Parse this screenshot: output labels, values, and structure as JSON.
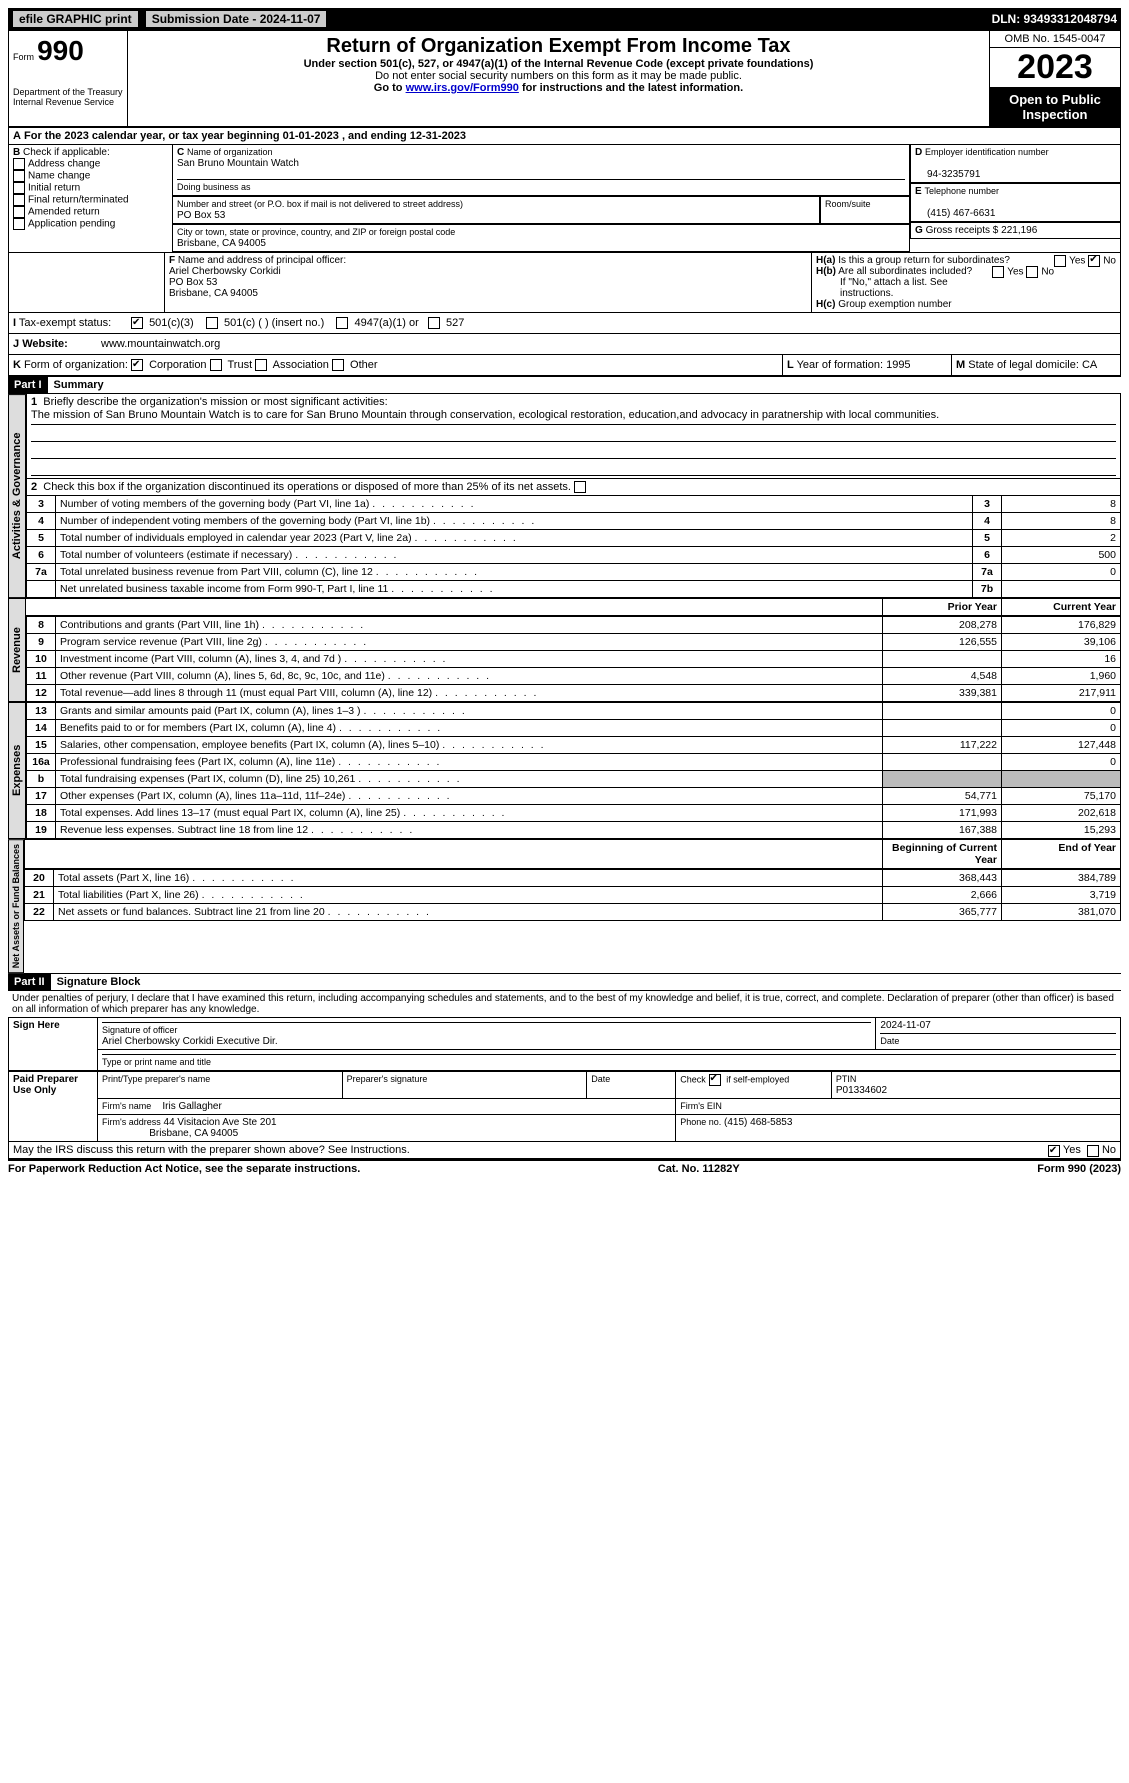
{
  "topbar": {
    "efile": "efile GRAPHIC print",
    "submission": "Submission Date - 2024-11-07",
    "dln": "DLN: 93493312048794"
  },
  "header": {
    "form_label": "Form",
    "form_no": "990",
    "dept": "Department of the Treasury",
    "irs": "Internal Revenue Service",
    "title": "Return of Organization Exempt From Income Tax",
    "subtitle": "Under section 501(c), 527, or 4947(a)(1) of the Internal Revenue Code (except private foundations)",
    "note1": "Do not enter social security numbers on this form as it may be made public.",
    "note2": "Go to ",
    "note2_link": "www.irs.gov/Form990",
    "note2_tail": " for instructions and the latest information.",
    "omb": "OMB No. 1545-0047",
    "year": "2023",
    "open": "Open to Public Inspection"
  },
  "A": {
    "text": "For the 2023 calendar year, or tax year beginning 01-01-2023    , and ending 12-31-2023"
  },
  "B": {
    "label": "Check if applicable:",
    "items": [
      "Address change",
      "Name change",
      "Initial return",
      "Final return/terminated",
      "Amended return",
      "Application pending"
    ]
  },
  "C": {
    "name_lbl": "Name of organization",
    "name": "San Bruno Mountain Watch",
    "dba_lbl": "Doing business as",
    "dba": "",
    "street_lbl": "Number and street (or P.O. box if mail is not delivered to street address)",
    "street": "PO Box 53",
    "room_lbl": "Room/suite",
    "room": "",
    "city_lbl": "City or town, state or province, country, and ZIP or foreign postal code",
    "city": "Brisbane, CA  94005"
  },
  "D": {
    "lbl": "Employer identification number",
    "val": "94-3235791"
  },
  "E": {
    "lbl": "Telephone number",
    "val": "(415) 467-6631"
  },
  "G": {
    "lbl": "Gross receipts $",
    "val": "221,196"
  },
  "F": {
    "lbl": "Name and address of principal officer:",
    "name": "Ariel Cherbowsky Corkidi",
    "street": "PO Box 53",
    "city": "Brisbane, CA  94005"
  },
  "H": {
    "a": "Is this a group return for subordinates?",
    "a_yes": "Yes",
    "a_no": "No",
    "b": "Are all subordinates included?",
    "b_note": "If \"No,\" attach a list. See instructions.",
    "c": "Group exemption number"
  },
  "I": {
    "lbl": "Tax-exempt status:",
    "opts": [
      "501(c)(3)",
      "501(c) (  ) (insert no.)",
      "4947(a)(1) or",
      "527"
    ]
  },
  "J": {
    "lbl": "Website:",
    "val": "www.mountainwatch.org"
  },
  "K": {
    "lbl": "Form of organization:",
    "opts": [
      "Corporation",
      "Trust",
      "Association",
      "Other"
    ]
  },
  "L": {
    "lbl": "Year of formation:",
    "val": "1995"
  },
  "M": {
    "lbl": "State of legal domicile:",
    "val": "CA"
  },
  "part1": {
    "hdr": "Part I",
    "title": "Summary"
  },
  "mission": {
    "lbl": "Briefly describe the organization's mission or most significant activities:",
    "text": "The mission of San Bruno Mountain Watch is to care for San Bruno Mountain through conservation, ecological restoration, education,and advocacy in paratnership with local communities."
  },
  "line2": "Check this box      if the organization discontinued its operations or disposed of more than 25% of its net assets.",
  "gov_rows": [
    {
      "n": "3",
      "t": "Number of voting members of the governing body (Part VI, line 1a)",
      "rn": "3",
      "v": "8"
    },
    {
      "n": "4",
      "t": "Number of independent voting members of the governing body (Part VI, line 1b)",
      "rn": "4",
      "v": "8"
    },
    {
      "n": "5",
      "t": "Total number of individuals employed in calendar year 2023 (Part V, line 2a)",
      "rn": "5",
      "v": "2"
    },
    {
      "n": "6",
      "t": "Total number of volunteers (estimate if necessary)",
      "rn": "6",
      "v": "500"
    },
    {
      "n": "7a",
      "t": "Total unrelated business revenue from Part VIII, column (C), line 12",
      "rn": "7a",
      "v": "0"
    },
    {
      "n": "",
      "t": "Net unrelated business taxable income from Form 990-T, Part I, line 11",
      "rn": "7b",
      "v": ""
    }
  ],
  "rev_hdr": {
    "prior": "Prior Year",
    "curr": "Current Year"
  },
  "rev_rows": [
    {
      "n": "8",
      "t": "Contributions and grants (Part VIII, line 1h)",
      "p": "208,278",
      "c": "176,829"
    },
    {
      "n": "9",
      "t": "Program service revenue (Part VIII, line 2g)",
      "p": "126,555",
      "c": "39,106"
    },
    {
      "n": "10",
      "t": "Investment income (Part VIII, column (A), lines 3, 4, and 7d )",
      "p": "",
      "c": "16"
    },
    {
      "n": "11",
      "t": "Other revenue (Part VIII, column (A), lines 5, 6d, 8c, 9c, 10c, and 11e)",
      "p": "4,548",
      "c": "1,960"
    },
    {
      "n": "12",
      "t": "Total revenue—add lines 8 through 11 (must equal Part VIII, column (A), line 12)",
      "p": "339,381",
      "c": "217,911"
    }
  ],
  "exp_rows": [
    {
      "n": "13",
      "t": "Grants and similar amounts paid (Part IX, column (A), lines 1–3 )",
      "p": "",
      "c": "0"
    },
    {
      "n": "14",
      "t": "Benefits paid to or for members (Part IX, column (A), line 4)",
      "p": "",
      "c": "0"
    },
    {
      "n": "15",
      "t": "Salaries, other compensation, employee benefits (Part IX, column (A), lines 5–10)",
      "p": "117,222",
      "c": "127,448"
    },
    {
      "n": "16a",
      "t": "Professional fundraising fees (Part IX, column (A), line 11e)",
      "p": "",
      "c": "0"
    },
    {
      "n": "b",
      "t": "Total fundraising expenses (Part IX, column (D), line 25) 10,261",
      "p": "shade",
      "c": "shade"
    },
    {
      "n": "17",
      "t": "Other expenses (Part IX, column (A), lines 11a–11d, 11f–24e)",
      "p": "54,771",
      "c": "75,170"
    },
    {
      "n": "18",
      "t": "Total expenses. Add lines 13–17 (must equal Part IX, column (A), line 25)",
      "p": "171,993",
      "c": "202,618"
    },
    {
      "n": "19",
      "t": "Revenue less expenses. Subtract line 18 from line 12",
      "p": "167,388",
      "c": "15,293"
    }
  ],
  "na_hdr": {
    "beg": "Beginning of Current Year",
    "end": "End of Year"
  },
  "na_rows": [
    {
      "n": "20",
      "t": "Total assets (Part X, line 16)",
      "p": "368,443",
      "c": "384,789"
    },
    {
      "n": "21",
      "t": "Total liabilities (Part X, line 26)",
      "p": "2,666",
      "c": "3,719"
    },
    {
      "n": "22",
      "t": "Net assets or fund balances. Subtract line 21 from line 20",
      "p": "365,777",
      "c": "381,070"
    }
  ],
  "part2": {
    "hdr": "Part II",
    "title": "Signature Block"
  },
  "perjury": "Under penalties of perjury, I declare that I have examined this return, including accompanying schedules and statements, and to the best of my knowledge and belief, it is true, correct, and complete. Declaration of preparer (other than officer) is based on all information of which preparer has any knowledge.",
  "sign": {
    "here": "Sign Here",
    "date": "2024-11-07",
    "sig_lbl": "Signature of officer",
    "name_title": "Ariel Cherbowsky Corkidi  Executive Dir.",
    "type_lbl": "Type or print name and title"
  },
  "paid": {
    "title": "Paid Preparer Use Only",
    "print_lbl": "Print/Type preparer's name",
    "sig_lbl": "Preparer's signature",
    "date_lbl": "Date",
    "check_lbl": "Check",
    "self": "if self-employed",
    "ptin_lbl": "PTIN",
    "ptin": "P01334602",
    "firm_name_lbl": "Firm's name",
    "firm_name": "Iris Gallagher",
    "firm_ein_lbl": "Firm's EIN",
    "firm_addr_lbl": "Firm's address",
    "firm_addr1": "44 Visitacion Ave Ste 201",
    "firm_addr2": "Brisbane, CA  94005",
    "phone_lbl": "Phone no.",
    "phone": "(415) 468-5853"
  },
  "may_irs": "May the IRS discuss this return with the preparer shown above? See Instructions.",
  "footer": {
    "left": "For Paperwork Reduction Act Notice, see the separate instructions.",
    "mid": "Cat. No. 11282Y",
    "right": "Form 990 (2023)"
  },
  "side_labels": {
    "gov": "Activities & Governance",
    "rev": "Revenue",
    "exp": "Expenses",
    "na": "Net Assets or Fund Balances"
  }
}
